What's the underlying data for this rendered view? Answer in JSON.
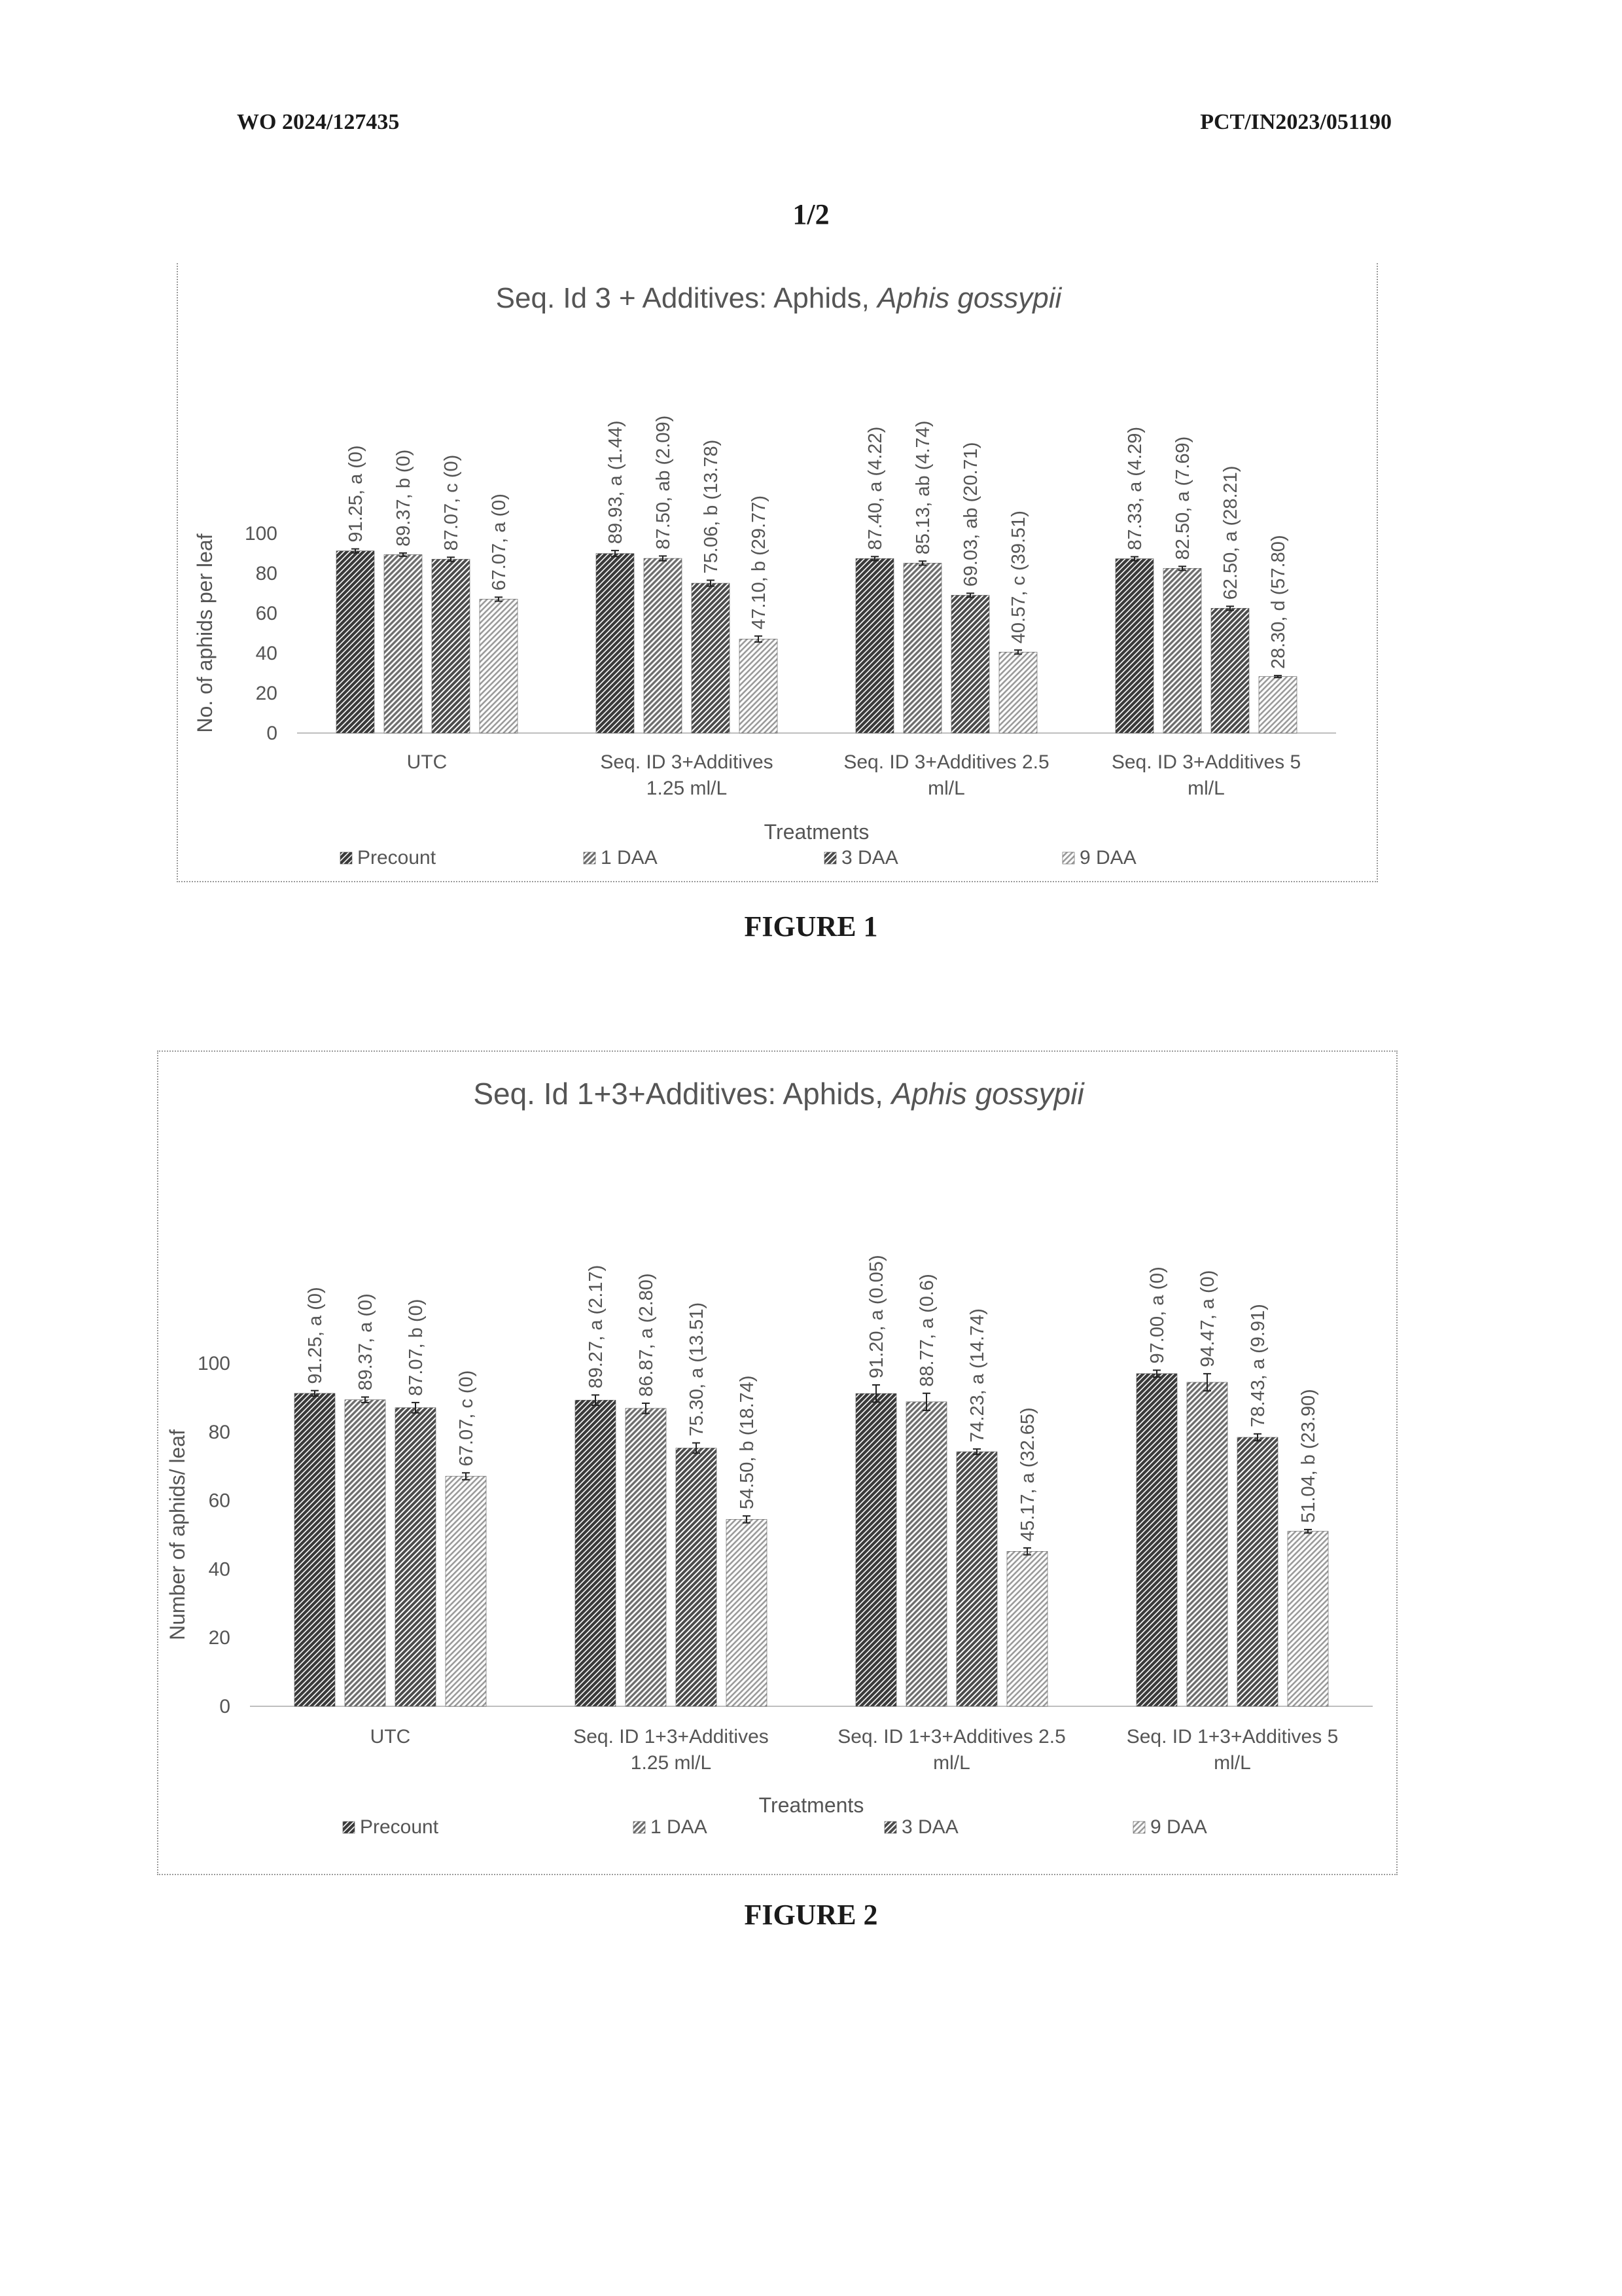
{
  "header": {
    "left": "WO 2024/127435",
    "right": "PCT/IN2023/051190",
    "page": "1/2"
  },
  "colors": {
    "Precount": "#3a3a3a",
    "1 DAA": "#6e6e6e",
    "3 DAA": "#4c4c4c",
    "9 DAA": "#9a9a9a",
    "axis": "#bfbfbf",
    "text": "#555555"
  },
  "figures": [
    {
      "caption": "FIGURE 1"
    },
    {
      "caption": "FIGURE 2"
    }
  ],
  "chart_data": [
    {
      "type": "bar",
      "title": "Seq. Id 3 + Additives: Aphids, ",
      "title_italic": "Aphis gossypii",
      "xlabel": "Treatments",
      "ylabel": "No. of aphids per leaf",
      "ylim": [
        0,
        100
      ],
      "yticks": [
        0,
        20,
        40,
        60,
        80,
        100
      ],
      "grid": false,
      "legend_position": "bottom",
      "categories": [
        [
          "UTC"
        ],
        [
          "Seq. ID 3+Additives",
          "1.25 ml/L"
        ],
        [
          "Seq. ID 3+Additives 2.5",
          "ml/L"
        ],
        [
          "Seq. ID 3+Additives 5",
          "ml/L"
        ]
      ],
      "series": [
        {
          "name": "Precount",
          "values": [
            91.25,
            89.93,
            87.4,
            87.33
          ],
          "errors": [
            1,
            1.5,
            1,
            1
          ],
          "labels": [
            "91.25, a (0)",
            "89.93, a (1.44)",
            "87.40, a (4.22)",
            "87.33, a (4.29)"
          ]
        },
        {
          "name": "1 DAA",
          "values": [
            89.37,
            87.5,
            85.13,
            82.5
          ],
          "errors": [
            0.8,
            1.2,
            1,
            1
          ],
          "labels": [
            "89.37, b (0)",
            "87.50, ab (2.09)",
            "85.13, ab (4.74)",
            "82.50, a (7.69)"
          ]
        },
        {
          "name": "3 DAA",
          "values": [
            87.07,
            75.06,
            69.03,
            62.5
          ],
          "errors": [
            1,
            1.5,
            1,
            1
          ],
          "labels": [
            "87.07, c (0)",
            "75.06, b (13.78)",
            "69.03, ab (20.71)",
            "62.50, a (28.21)"
          ]
        },
        {
          "name": "9 DAA",
          "values": [
            67.07,
            47.1,
            40.57,
            28.3
          ],
          "errors": [
            1,
            1.5,
            1,
            0.5
          ],
          "labels": [
            "67.07, a (0)",
            "47.10, b (29.77)",
            "40.57, c (39.51)",
            "28.30, d (57.80)"
          ]
        }
      ]
    },
    {
      "type": "bar",
      "title": "Seq. Id 1+3+Additives: Aphids, ",
      "title_italic": "Aphis gossypii",
      "xlabel": "Treatments",
      "ylabel": "Number of aphids/ leaf",
      "ylim": [
        0,
        100
      ],
      "yticks": [
        0,
        20,
        40,
        60,
        80,
        100
      ],
      "grid": false,
      "legend_position": "bottom",
      "categories": [
        [
          "UTC"
        ],
        [
          "Seq. ID 1+3+Additives",
          "1.25 ml/L"
        ],
        [
          "Seq. ID 1+3+Additives 2.5",
          "ml/L"
        ],
        [
          "Seq. ID 1+3+Additives 5",
          "ml/L"
        ]
      ],
      "series": [
        {
          "name": "Precount",
          "values": [
            91.25,
            89.27,
            91.2,
            97.0
          ],
          "errors": [
            0.8,
            1.5,
            2.5,
            1
          ],
          "labels": [
            "91.25, a (0)",
            "89.27, a (2.17)",
            "91.20, a (0.05)",
            "97.00, a (0)"
          ]
        },
        {
          "name": "1 DAA",
          "values": [
            89.37,
            86.87,
            88.77,
            94.47
          ],
          "errors": [
            0.8,
            1.5,
            2.5,
            2.5
          ],
          "labels": [
            "89.37, a (0)",
            "86.87, a (2.80)",
            "88.77, a (0.6)",
            "94.47, a (0)"
          ]
        },
        {
          "name": "3 DAA",
          "values": [
            87.07,
            75.3,
            74.23,
            78.43
          ],
          "errors": [
            1.5,
            1.5,
            0.8,
            1
          ],
          "labels": [
            "87.07, b (0)",
            "75.30, a (13.51)",
            "74.23, a (14.74)",
            "78.43, a (9.91)"
          ]
        },
        {
          "name": "9 DAA",
          "values": [
            67.07,
            54.5,
            45.17,
            51.04
          ],
          "errors": [
            1,
            1,
            1,
            0.5
          ],
          "labels": [
            "67.07, c (0)",
            "54.50, b (18.74)",
            "45.17, a (32.65)",
            "51.04, b (23.90)"
          ]
        }
      ]
    }
  ]
}
